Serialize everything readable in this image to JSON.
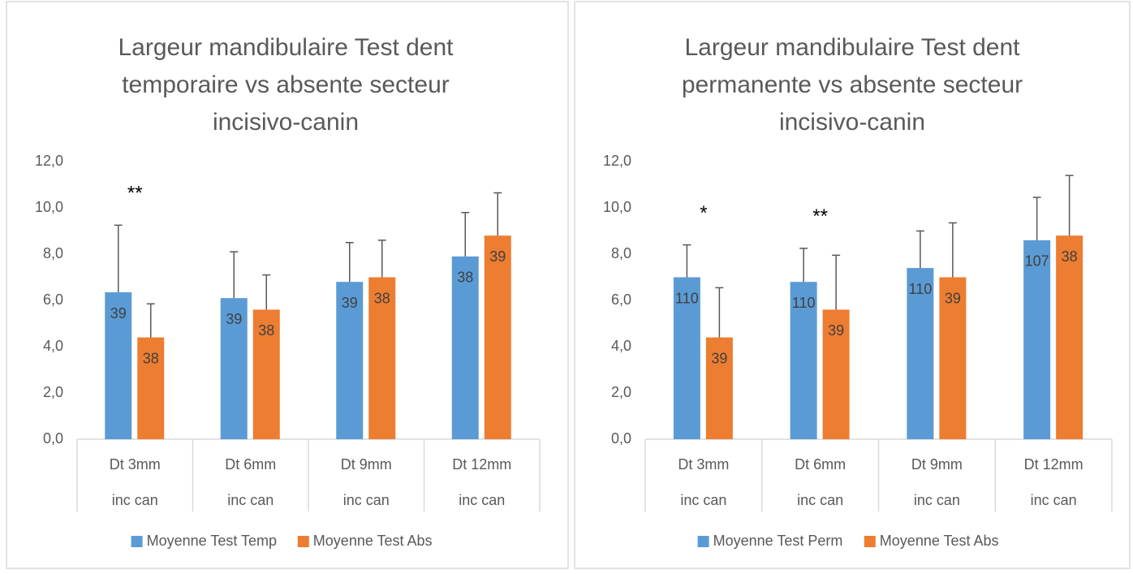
{
  "chart_data": [
    {
      "type": "bar",
      "title": [
        "Largeur mandibulaire Test dent",
        "temporaire vs absente secteur",
        "incisivo-canin"
      ],
      "categories": [
        [
          "Dt  3mm",
          "inc can"
        ],
        [
          "Dt  6mm",
          "inc can"
        ],
        [
          "Dt  9mm",
          "inc can"
        ],
        [
          "Dt  12mm",
          "inc can"
        ]
      ],
      "series": [
        {
          "name": "Moyenne Test Temp",
          "color": "#5b9bd5",
          "values": [
            6.35,
            6.1,
            6.8,
            7.9
          ],
          "errors": [
            2.9,
            2.0,
            1.7,
            1.9
          ],
          "value_labels": [
            "39",
            "39",
            "39",
            "38"
          ]
        },
        {
          "name": "Moyenne Test Abs",
          "color": "#ed7d31",
          "values": [
            4.4,
            5.6,
            7.0,
            8.8
          ],
          "errors": [
            1.45,
            1.5,
            1.6,
            1.85
          ],
          "value_labels": [
            "38",
            "38",
            "38",
            "39"
          ]
        }
      ],
      "annotations": [
        "**",
        null,
        null,
        null
      ],
      "ylim": [
        0,
        12
      ],
      "yticks": [
        {
          "value": 0,
          "label": "0,0"
        },
        {
          "value": 2,
          "label": "2,0"
        },
        {
          "value": 4,
          "label": "4,0"
        },
        {
          "value": 6,
          "label": "6,0"
        },
        {
          "value": 8,
          "label": "8,0"
        },
        {
          "value": 10,
          "label": "10,0"
        },
        {
          "value": 12,
          "label": "12,0"
        }
      ],
      "legend": "bottom"
    },
    {
      "type": "bar",
      "title": [
        "Largeur mandibulaire Test dent",
        "permanente vs absente secteur",
        "incisivo-canin"
      ],
      "categories": [
        [
          "Dt  3mm",
          "inc can"
        ],
        [
          "Dt  6mm",
          "inc can"
        ],
        [
          "Dt  9mm",
          "inc can"
        ],
        [
          "Dt  12mm",
          "inc can"
        ]
      ],
      "series": [
        {
          "name": "Moyenne Test Perm",
          "color": "#5b9bd5",
          "values": [
            7.0,
            6.8,
            7.4,
            8.6
          ],
          "errors": [
            1.4,
            1.45,
            1.6,
            1.85
          ],
          "value_labels": [
            "110",
            "110",
            "110",
            "107"
          ]
        },
        {
          "name": "Moyenne Test Abs",
          "color": "#ed7d31",
          "values": [
            4.4,
            5.6,
            7.0,
            8.8
          ],
          "errors": [
            2.15,
            2.35,
            2.35,
            2.6
          ],
          "value_labels": [
            "39",
            "39",
            "39",
            "38"
          ]
        }
      ],
      "annotations": [
        "*",
        "**",
        null,
        null
      ],
      "ylim": [
        0,
        12
      ],
      "yticks": [
        {
          "value": 0,
          "label": "0,0"
        },
        {
          "value": 2,
          "label": "2,0"
        },
        {
          "value": 4,
          "label": "4,0"
        },
        {
          "value": 6,
          "label": "6,0"
        },
        {
          "value": 8,
          "label": "8,0"
        },
        {
          "value": 10,
          "label": "10,0"
        },
        {
          "value": 12,
          "label": "12,0"
        }
      ],
      "legend": "bottom"
    }
  ]
}
